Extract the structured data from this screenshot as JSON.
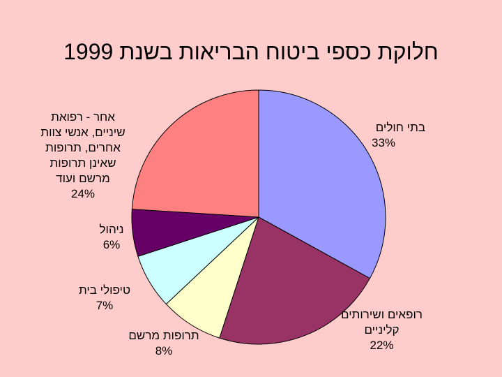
{
  "chart_data": {
    "type": "pie",
    "title": "חלוקת כספי ביטוח הבריאות בשנת 1999",
    "categories": [
      "בתי חולים",
      "רופאים ושירותים קליניים",
      "תרופות מרשם",
      "טיפולי בית",
      "ניהול",
      "אחר - רפואת שיניים, אנשי צוות אחרים, תרופות שאינן תרופות מרשם ועוד"
    ],
    "values": [
      33,
      22,
      8,
      7,
      6,
      24
    ],
    "value_labels": [
      "33%",
      "22%",
      "8%",
      "7%",
      "6%",
      "24%"
    ],
    "colors": [
      "#9999ff",
      "#993366",
      "#ffffcc",
      "#ccffff",
      "#660066",
      "#ff8080"
    ]
  }
}
